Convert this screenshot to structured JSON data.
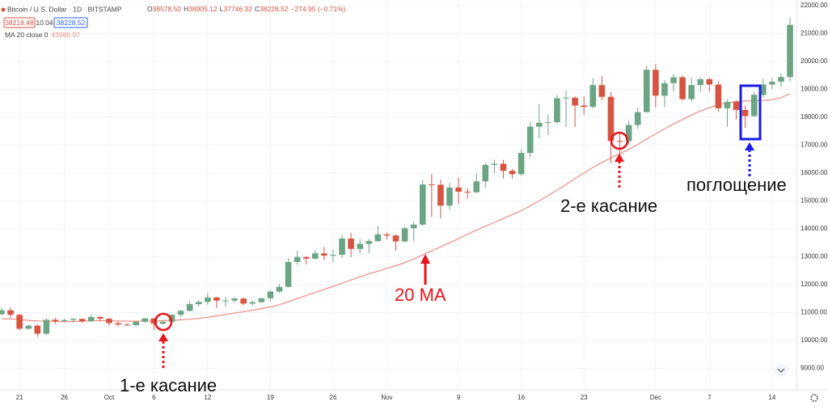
{
  "header": {
    "symbol": "Bitcoin / U.S. Dollar · 1D · BITSTAMP",
    "o_label": "O",
    "o": "38578.50",
    "h_label": "H",
    "h": "38905.12",
    "l_label": "L",
    "l": "37746.32",
    "c_label": "C",
    "c": "38228.52",
    "change": "−274.95 (−0.71%)",
    "bid": "38218.48",
    "spread": "10.04",
    "ask": "38228.52",
    "ma_label": "MA 20 close 0",
    "ma_value": "43988.97"
  },
  "annotations": {
    "touch1": "1-е касание",
    "touch2": "2-е касание",
    "engulfing": "поглощение",
    "ma": "20 MA"
  },
  "chart_data": {
    "type": "candlestick",
    "up_color": "#6ba583",
    "down_color": "#d75442",
    "grid": true,
    "categories": [
      null,
      null,
      "21",
      null,
      null,
      null,
      null,
      "26",
      null,
      null,
      null,
      null,
      "Oct",
      null,
      null,
      null,
      null,
      "6",
      null,
      null,
      null,
      null,
      null,
      "12",
      null,
      null,
      null,
      null,
      null,
      null,
      "19",
      null,
      null,
      null,
      null,
      null,
      null,
      "26",
      null,
      null,
      null,
      null,
      null,
      "Nov",
      null,
      null,
      null,
      null,
      null,
      null,
      null,
      "9",
      null,
      null,
      null,
      null,
      null,
      null,
      "16",
      null,
      null,
      null,
      null,
      null,
      null,
      "23",
      null,
      null,
      null,
      null,
      null,
      null,
      null,
      "Dec",
      null,
      null,
      null,
      null,
      null,
      "7",
      null,
      null,
      null,
      null,
      null,
      null,
      "14",
      null,
      null
    ],
    "open": [
      10940,
      11080,
      10920,
      10420,
      10530,
      10240,
      10740,
      10690,
      10730,
      10770,
      10690,
      10840,
      10780,
      10620,
      10570,
      10550,
      10670,
      10790,
      10600,
      10670,
      10920,
      11060,
      11300,
      11380,
      11540,
      11430,
      11430,
      11500,
      11320,
      11370,
      11510,
      11750,
      11920,
      12810,
      12990,
      12930,
      13120,
      13040,
      13070,
      13650,
      13280,
      13460,
      13560,
      13800,
      13760,
      13550,
      14020,
      14150,
      15590,
      15580,
      14830,
      15480,
      15330,
      15310,
      15700,
      16290,
      16330,
      16080,
      15960,
      16720,
      17660,
      17800,
      17820,
      18680,
      18700,
      18420,
      18370,
      19150,
      18730,
      17150,
      17140,
      17720,
      18180,
      19700,
      18770,
      19220,
      19430,
      18650,
      19150,
      19360,
      19170,
      18320,
      18550,
      18260,
      18040,
      18800,
      19170,
      19270,
      19440
    ],
    "high": [
      11180,
      11180,
      10950,
      10560,
      10580,
      10780,
      10800,
      10780,
      10800,
      10800,
      10930,
      10870,
      10800,
      10680,
      10620,
      10690,
      10800,
      10800,
      10690,
      10940,
      11100,
      11420,
      11450,
      11700,
      11560,
      11560,
      11550,
      11540,
      11440,
      11530,
      11800,
      12020,
      12950,
      13220,
      13020,
      13240,
      13350,
      13250,
      13780,
      13860,
      13640,
      13630,
      14100,
      13870,
      13800,
      14080,
      14260,
      15750,
      15960,
      15770,
      15650,
      15830,
      15450,
      15980,
      16350,
      16480,
      16470,
      16150,
      16850,
      17830,
      18480,
      18110,
      18800,
      18950,
      18750,
      18750,
      19400,
      19470,
      18910,
      17420,
      17880,
      18340,
      19850,
      19900,
      19330,
      19560,
      19500,
      19410,
      19420,
      19420,
      19290,
      18640,
      18600,
      18400,
      18920,
      19390,
      19410,
      19570,
      21560
    ],
    "low": [
      10900,
      10800,
      10360,
      10380,
      10130,
      10200,
      10600,
      10640,
      10640,
      10630,
      10660,
      10700,
      10520,
      10500,
      10510,
      10500,
      10630,
      10380,
      10560,
      10650,
      10840,
      11040,
      11220,
      11280,
      11170,
      11220,
      11350,
      11260,
      11250,
      11350,
      11390,
      11700,
      11900,
      12700,
      12720,
      12900,
      12880,
      12800,
      12950,
      12990,
      13110,
      13130,
      13530,
      13620,
      13210,
      13520,
      13550,
      14100,
      14420,
      14370,
      14700,
      14890,
      15080,
      15270,
      15460,
      15990,
      15810,
      15800,
      15900,
      16560,
      17240,
      17360,
      17760,
      17650,
      17650,
      18080,
      18320,
      18600,
      16350,
      16500,
      17010,
      17580,
      18170,
      18350,
      18360,
      18920,
      18590,
      18540,
      18920,
      18920,
      18200,
      17650,
      17920,
      17620,
      18020,
      18720,
      19000,
      19080,
      19290
    ],
    "close": [
      11080,
      10920,
      10420,
      10530,
      10240,
      10740,
      10690,
      10730,
      10770,
      10690,
      10840,
      10780,
      10620,
      10570,
      10550,
      10670,
      10790,
      10600,
      10670,
      10920,
      11060,
      11300,
      11380,
      11540,
      11430,
      11430,
      11500,
      11320,
      11370,
      11510,
      11750,
      11920,
      12810,
      12990,
      12930,
      13120,
      13040,
      13070,
      13650,
      13280,
      13460,
      13560,
      13800,
      13760,
      13550,
      14020,
      14150,
      15590,
      15580,
      14830,
      15480,
      15330,
      15310,
      15700,
      16290,
      16330,
      16080,
      15960,
      16720,
      17660,
      17800,
      17820,
      18680,
      18700,
      18420,
      18370,
      19150,
      18730,
      17150,
      17140,
      17720,
      18180,
      19700,
      18770,
      19220,
      19430,
      18650,
      19150,
      19360,
      19170,
      18320,
      18550,
      18260,
      18040,
      18800,
      19170,
      19270,
      19440,
      21310
    ],
    "ma": {
      "color": "#f28b82",
      "values": [
        10780,
        10770,
        10750,
        10720,
        10700,
        10690,
        10680,
        10670,
        10680,
        10690,
        10700,
        10710,
        10700,
        10700,
        10690,
        10690,
        10700,
        10700,
        10710,
        10720,
        10740,
        10760,
        10790,
        10830,
        10880,
        10930,
        10980,
        11030,
        11080,
        11140,
        11200,
        11280,
        11390,
        11500,
        11610,
        11720,
        11830,
        11940,
        12050,
        12170,
        12280,
        12390,
        12480,
        12580,
        12680,
        12790,
        12920,
        13070,
        13210,
        13350,
        13500,
        13650,
        13800,
        13950,
        14090,
        14230,
        14370,
        14510,
        14650,
        14820,
        15000,
        15190,
        15390,
        15590,
        15800,
        16000,
        16200,
        16380,
        16540,
        16690,
        16850,
        17020,
        17220,
        17400,
        17580,
        17760,
        17920,
        18080,
        18220,
        18340,
        18440,
        18520,
        18560,
        18580,
        18590,
        18600,
        18630,
        18700,
        18850
      ]
    },
    "ylim": [
      8230,
      22200
    ],
    "yticks": [
      {
        "value": 9000,
        "label": "9000.00"
      },
      {
        "value": 10000,
        "label": "10000.00"
      },
      {
        "value": 11000,
        "label": "11000.00"
      },
      {
        "value": 12000,
        "label": "12000.00"
      },
      {
        "value": 13000,
        "label": "13000.00"
      },
      {
        "value": 14000,
        "label": "14000.00"
      },
      {
        "value": 15000,
        "label": "15000.00"
      },
      {
        "value": 16000,
        "label": "16000.00"
      },
      {
        "value": 17000,
        "label": "17000.00"
      },
      {
        "value": 18000,
        "label": "18000.00"
      },
      {
        "value": 19000,
        "label": "19000.00"
      },
      {
        "value": 20000,
        "label": "20000.00"
      },
      {
        "value": 21000,
        "label": "21000.00"
      },
      {
        "value": 22000,
        "label": "22000.00"
      }
    ]
  }
}
